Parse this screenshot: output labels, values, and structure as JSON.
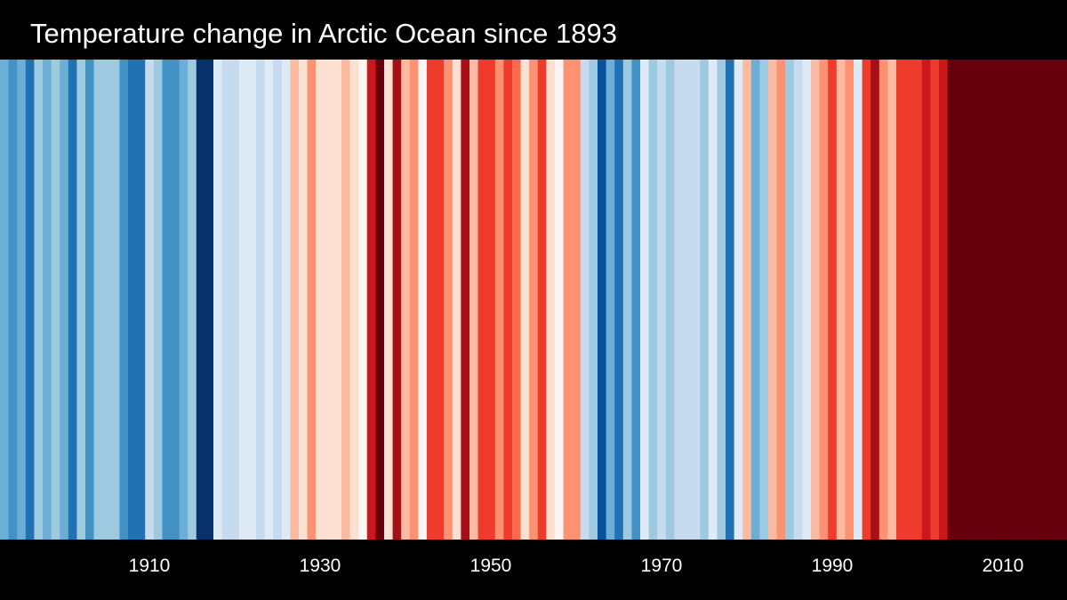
{
  "chart_data": {
    "type": "heatmap",
    "title": "Temperature change in Arctic Ocean since 1893",
    "x_start": 1893,
    "x_end": 2018,
    "xticks": [
      1910,
      1930,
      1950,
      1970,
      1990,
      2010
    ],
    "colors": {
      "background": "#000000",
      "text": "#ffffff"
    },
    "stripes": [
      {
        "year": 1893,
        "color": "#6baed6"
      },
      {
        "year": 1894,
        "color": "#4292c6"
      },
      {
        "year": 1895,
        "color": "#6baed6"
      },
      {
        "year": 1896,
        "color": "#2171b5"
      },
      {
        "year": 1897,
        "color": "#9ecae1"
      },
      {
        "year": 1898,
        "color": "#6baed6"
      },
      {
        "year": 1899,
        "color": "#9ecae1"
      },
      {
        "year": 1900,
        "color": "#6baed6"
      },
      {
        "year": 1901,
        "color": "#2171b5"
      },
      {
        "year": 1902,
        "color": "#9ecae1"
      },
      {
        "year": 1903,
        "color": "#4292c6"
      },
      {
        "year": 1904,
        "color": "#9ecae1"
      },
      {
        "year": 1905,
        "color": "#9ecae1"
      },
      {
        "year": 1906,
        "color": "#9ecae1"
      },
      {
        "year": 1907,
        "color": "#4292c6"
      },
      {
        "year": 1908,
        "color": "#2171b5"
      },
      {
        "year": 1909,
        "color": "#2171b5"
      },
      {
        "year": 1910,
        "color": "#c6dbef"
      },
      {
        "year": 1911,
        "color": "#9ecae1"
      },
      {
        "year": 1912,
        "color": "#4292c6"
      },
      {
        "year": 1913,
        "color": "#4292c6"
      },
      {
        "year": 1914,
        "color": "#6baed6"
      },
      {
        "year": 1915,
        "color": "#9ecae1"
      },
      {
        "year": 1916,
        "color": "#08306b"
      },
      {
        "year": 1917,
        "color": "#08306b"
      },
      {
        "year": 1918,
        "color": "#deebf7"
      },
      {
        "year": 1919,
        "color": "#c6dbef"
      },
      {
        "year": 1920,
        "color": "#c6dbef"
      },
      {
        "year": 1921,
        "color": "#deebf7"
      },
      {
        "year": 1922,
        "color": "#deebf7"
      },
      {
        "year": 1923,
        "color": "#c6dbef"
      },
      {
        "year": 1924,
        "color": "#deebf7"
      },
      {
        "year": 1925,
        "color": "#c6dbef"
      },
      {
        "year": 1926,
        "color": "#deebf7"
      },
      {
        "year": 1927,
        "color": "#fcbba1"
      },
      {
        "year": 1928,
        "color": "#fee0d2"
      },
      {
        "year": 1929,
        "color": "#fc9272"
      },
      {
        "year": 1930,
        "color": "#fee0d2"
      },
      {
        "year": 1931,
        "color": "#fee0d2"
      },
      {
        "year": 1932,
        "color": "#fee0d2"
      },
      {
        "year": 1933,
        "color": "#fcbba1"
      },
      {
        "year": 1934,
        "color": "#fee0d2"
      },
      {
        "year": 1935,
        "color": "#fff5f0"
      },
      {
        "year": 1936,
        "color": "#cb181d"
      },
      {
        "year": 1937,
        "color": "#67000d"
      },
      {
        "year": 1938,
        "color": "#fee0d2"
      },
      {
        "year": 1939,
        "color": "#a50f15"
      },
      {
        "year": 1940,
        "color": "#fcbba1"
      },
      {
        "year": 1941,
        "color": "#fc9272"
      },
      {
        "year": 1942,
        "color": "#fff5f0"
      },
      {
        "year": 1943,
        "color": "#ef3b2c"
      },
      {
        "year": 1944,
        "color": "#ef3b2c"
      },
      {
        "year": 1945,
        "color": "#fc9272"
      },
      {
        "year": 1946,
        "color": "#fee0d2"
      },
      {
        "year": 1947,
        "color": "#a50f15"
      },
      {
        "year": 1948,
        "color": "#fcbba1"
      },
      {
        "year": 1949,
        "color": "#ef3b2c"
      },
      {
        "year": 1950,
        "color": "#ef3b2c"
      },
      {
        "year": 1951,
        "color": "#fc9272"
      },
      {
        "year": 1952,
        "color": "#ef3b2c"
      },
      {
        "year": 1953,
        "color": "#fb6a4a"
      },
      {
        "year": 1954,
        "color": "#fee0d2"
      },
      {
        "year": 1955,
        "color": "#fc9272"
      },
      {
        "year": 1956,
        "color": "#ef3b2c"
      },
      {
        "year": 1957,
        "color": "#fee0d2"
      },
      {
        "year": 1958,
        "color": "#fff5f0"
      },
      {
        "year": 1959,
        "color": "#fc9272"
      },
      {
        "year": 1960,
        "color": "#fc9272"
      },
      {
        "year": 1961,
        "color": "#c6dbef"
      },
      {
        "year": 1962,
        "color": "#9ecae1"
      },
      {
        "year": 1963,
        "color": "#08519c"
      },
      {
        "year": 1964,
        "color": "#6baed6"
      },
      {
        "year": 1965,
        "color": "#2171b5"
      },
      {
        "year": 1966,
        "color": "#9ecae1"
      },
      {
        "year": 1967,
        "color": "#4292c6"
      },
      {
        "year": 1968,
        "color": "#deebf7"
      },
      {
        "year": 1969,
        "color": "#9ecae1"
      },
      {
        "year": 1970,
        "color": "#c6dbef"
      },
      {
        "year": 1971,
        "color": "#9ecae1"
      },
      {
        "year": 1972,
        "color": "#c6dbef"
      },
      {
        "year": 1973,
        "color": "#c6dbef"
      },
      {
        "year": 1974,
        "color": "#c6dbef"
      },
      {
        "year": 1975,
        "color": "#9ecae1"
      },
      {
        "year": 1976,
        "color": "#deebf7"
      },
      {
        "year": 1977,
        "color": "#9ecae1"
      },
      {
        "year": 1978,
        "color": "#2171b5"
      },
      {
        "year": 1979,
        "color": "#deebf7"
      },
      {
        "year": 1980,
        "color": "#fcbba1"
      },
      {
        "year": 1981,
        "color": "#6baed6"
      },
      {
        "year": 1982,
        "color": "#9ecae1"
      },
      {
        "year": 1983,
        "color": "#fcbba1"
      },
      {
        "year": 1984,
        "color": "#fc9272"
      },
      {
        "year": 1985,
        "color": "#9ecae1"
      },
      {
        "year": 1986,
        "color": "#c6dbef"
      },
      {
        "year": 1987,
        "color": "#deebf7"
      },
      {
        "year": 1988,
        "color": "#fcbba1"
      },
      {
        "year": 1989,
        "color": "#fc9272"
      },
      {
        "year": 1990,
        "color": "#ef3b2c"
      },
      {
        "year": 1991,
        "color": "#fcbba1"
      },
      {
        "year": 1992,
        "color": "#fc9272"
      },
      {
        "year": 1993,
        "color": "#deebf7"
      },
      {
        "year": 1994,
        "color": "#ef3b2c"
      },
      {
        "year": 1995,
        "color": "#a50f15"
      },
      {
        "year": 1996,
        "color": "#fc9272"
      },
      {
        "year": 1997,
        "color": "#fcbba1"
      },
      {
        "year": 1998,
        "color": "#ef3b2c"
      },
      {
        "year": 1999,
        "color": "#ef3b2c"
      },
      {
        "year": 2000,
        "color": "#ef3b2c"
      },
      {
        "year": 2001,
        "color": "#cb181d"
      },
      {
        "year": 2002,
        "color": "#ef3b2c"
      },
      {
        "year": 2003,
        "color": "#cb181d"
      },
      {
        "year": 2004,
        "color": "#67000d"
      },
      {
        "year": 2005,
        "color": "#67000d"
      },
      {
        "year": 2006,
        "color": "#67000d"
      },
      {
        "year": 2007,
        "color": "#67000d"
      },
      {
        "year": 2008,
        "color": "#67000d"
      },
      {
        "year": 2009,
        "color": "#67000d"
      },
      {
        "year": 2010,
        "color": "#67000d"
      },
      {
        "year": 2011,
        "color": "#67000d"
      },
      {
        "year": 2012,
        "color": "#67000d"
      },
      {
        "year": 2013,
        "color": "#67000d"
      },
      {
        "year": 2014,
        "color": "#67000d"
      },
      {
        "year": 2015,
        "color": "#67000d"
      },
      {
        "year": 2016,
        "color": "#67000d"
      },
      {
        "year": 2017,
        "color": "#67000d"
      }
    ]
  }
}
